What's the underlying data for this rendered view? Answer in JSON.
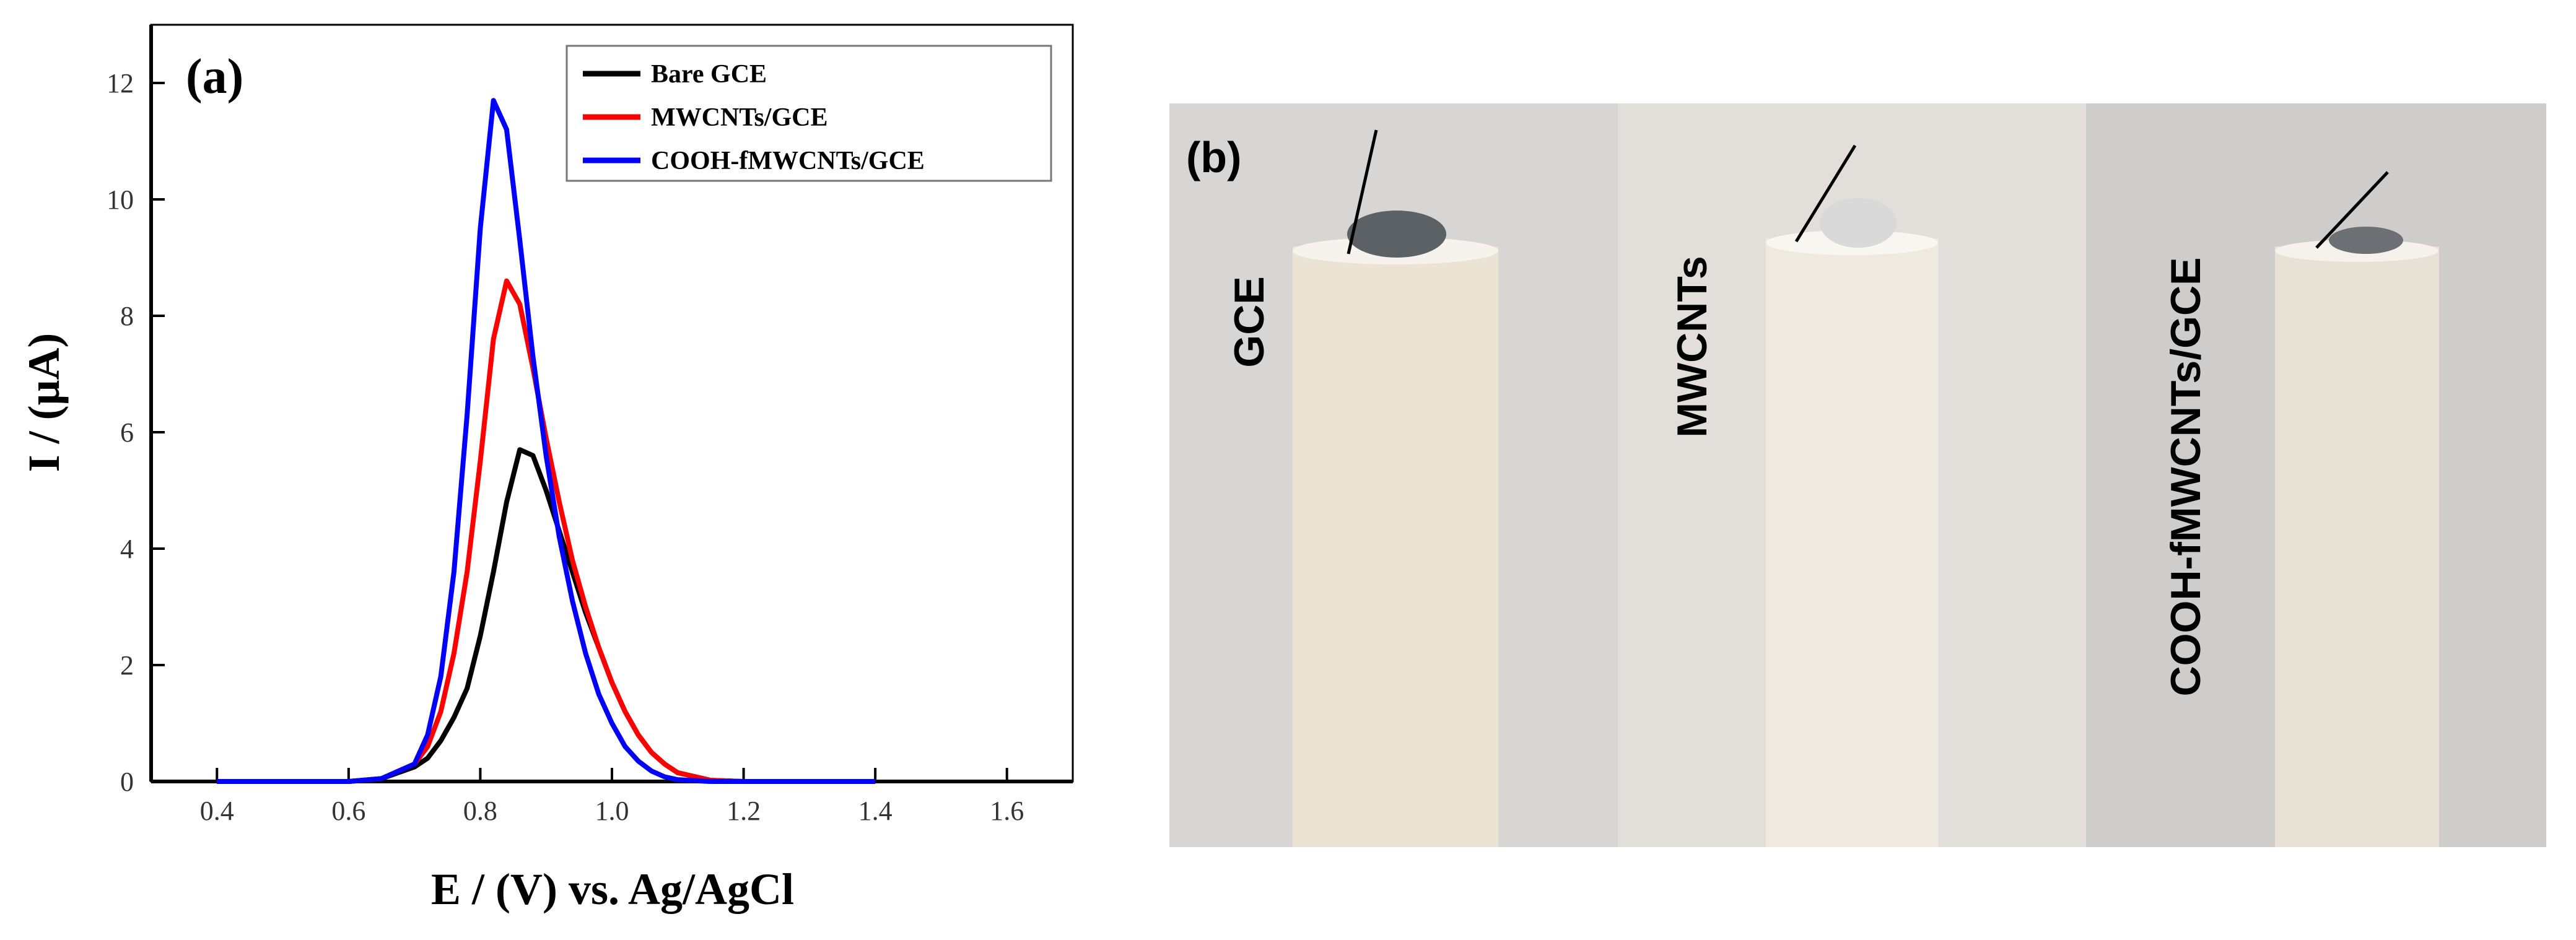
{
  "chart_data": {
    "type": "line",
    "panel_label": "(a)",
    "x_label": "E / (V) vs. Ag/AgCl",
    "y_label": "I / (μA)",
    "x": [
      0.4,
      0.5,
      0.6,
      0.65,
      0.7,
      0.72,
      0.74,
      0.76,
      0.78,
      0.8,
      0.82,
      0.84,
      0.86,
      0.88,
      0.9,
      0.92,
      0.94,
      0.96,
      0.98,
      1.0,
      1.02,
      1.04,
      1.06,
      1.08,
      1.1,
      1.15,
      1.2,
      1.3,
      1.4
    ],
    "series": [
      {
        "name": "Bare GCE",
        "color": "#000000",
        "values": [
          0,
          0,
          0,
          0.05,
          0.25,
          0.4,
          0.7,
          1.1,
          1.6,
          2.5,
          3.6,
          4.8,
          5.7,
          5.6,
          5.0,
          4.3,
          3.6,
          2.9,
          2.3,
          1.7,
          1.2,
          0.8,
          0.5,
          0.3,
          0.15,
          0.02,
          0,
          0,
          0
        ]
      },
      {
        "name": "MWCNTs/GCE",
        "color": "#ff0000",
        "values": [
          0,
          0,
          0,
          0.05,
          0.3,
          0.6,
          1.2,
          2.2,
          3.6,
          5.5,
          7.6,
          8.6,
          8.2,
          7.1,
          5.9,
          4.8,
          3.8,
          3.0,
          2.3,
          1.7,
          1.2,
          0.8,
          0.5,
          0.3,
          0.15,
          0.02,
          0,
          0,
          0
        ]
      },
      {
        "name": "COOH-fMWCNTs/GCE",
        "color": "#0000ff",
        "values": [
          0,
          0,
          0,
          0.05,
          0.3,
          0.8,
          1.8,
          3.6,
          6.3,
          9.5,
          11.7,
          11.2,
          9.3,
          7.3,
          5.6,
          4.2,
          3.1,
          2.2,
          1.5,
          1.0,
          0.6,
          0.35,
          0.18,
          0.08,
          0.03,
          0,
          0,
          0,
          0
        ]
      }
    ],
    "xlim": [
      0.3,
      1.7
    ],
    "xticks": [
      0.4,
      0.6,
      0.8,
      {
        "value": 1,
        "label": "1.0"
      },
      1.2,
      1.4,
      1.6
    ],
    "ylim": [
      0,
      13
    ],
    "yticks": [
      0,
      2,
      4,
      6,
      8,
      10,
      12
    ],
    "legend": "top-right"
  },
  "photo": {
    "label": "(b)",
    "electrodes": [
      "GCE",
      "MWCNTs",
      "COOH-fMWCNTs/GCE"
    ]
  }
}
